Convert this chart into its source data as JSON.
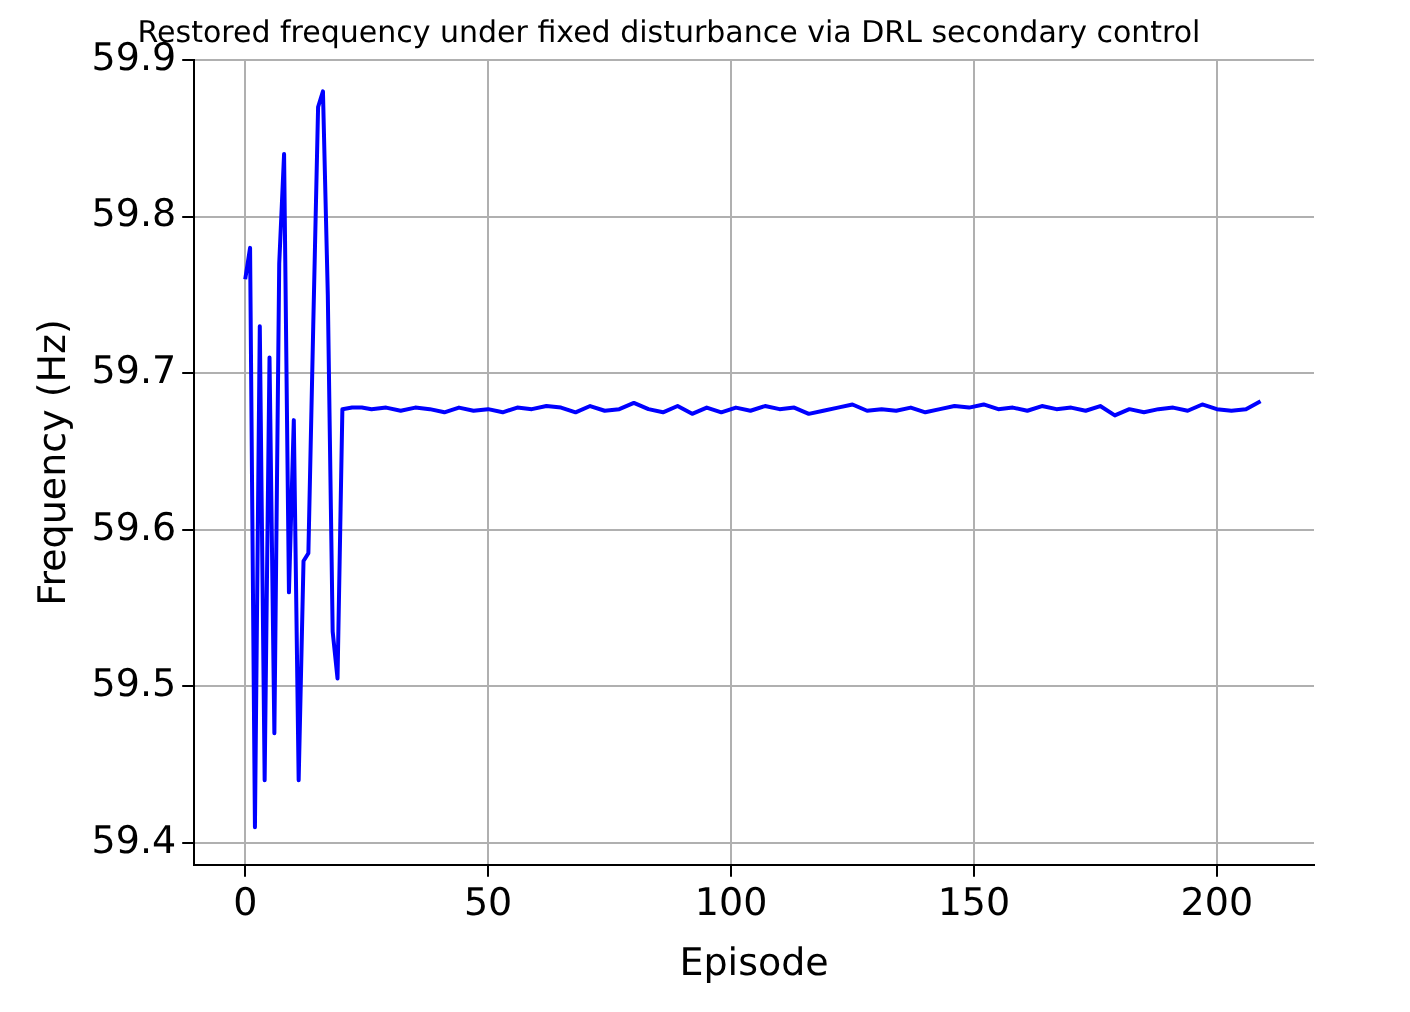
{
  "chart_data": {
    "type": "line",
    "title": "Restored frequency under fixed disturbance via DRL secondary control",
    "xlabel": "Episode",
    "ylabel": "Frequency (Hz)",
    "x": [
      0,
      1,
      2,
      3,
      4,
      5,
      6,
      7,
      8,
      9,
      10,
      11,
      12,
      13,
      14,
      15,
      16,
      17,
      18,
      19,
      20,
      22,
      24,
      26,
      29,
      32,
      35,
      38,
      41,
      44,
      47,
      50,
      53,
      56,
      59,
      62,
      65,
      68,
      71,
      74,
      77,
      80,
      83,
      86,
      89,
      92,
      95,
      98,
      101,
      104,
      107,
      110,
      113,
      116,
      119,
      122,
      125,
      128,
      131,
      134,
      137,
      140,
      143,
      146,
      149,
      152,
      155,
      158,
      161,
      164,
      167,
      170,
      173,
      176,
      179,
      182,
      185,
      188,
      191,
      194,
      197,
      200,
      203,
      206,
      209
    ],
    "series": [
      {
        "color": "#0000ff",
        "values": [
          59.76,
          59.78,
          59.41,
          59.73,
          59.44,
          59.71,
          59.47,
          59.77,
          59.84,
          59.56,
          59.67,
          59.44,
          59.58,
          59.585,
          59.73,
          59.87,
          59.88,
          59.75,
          59.535,
          59.505,
          59.677,
          59.678,
          59.678,
          59.677,
          59.678,
          59.676,
          59.678,
          59.677,
          59.675,
          59.678,
          59.676,
          59.677,
          59.675,
          59.678,
          59.677,
          59.679,
          59.678,
          59.675,
          59.679,
          59.676,
          59.677,
          59.681,
          59.677,
          59.675,
          59.679,
          59.674,
          59.678,
          59.675,
          59.678,
          59.676,
          59.679,
          59.677,
          59.678,
          59.674,
          59.676,
          59.678,
          59.68,
          59.676,
          59.677,
          59.676,
          59.678,
          59.675,
          59.677,
          59.679,
          59.678,
          59.68,
          59.677,
          59.678,
          59.676,
          59.679,
          59.677,
          59.678,
          59.676,
          59.679,
          59.673,
          59.677,
          59.675,
          59.677,
          59.678,
          59.676,
          59.68,
          59.677,
          59.676,
          59.677,
          59.682
        ]
      }
    ],
    "xlim": [
      -10.5,
      220
    ],
    "ylim": [
      59.386,
      59.9
    ],
    "xticks": [
      0,
      50,
      100,
      150,
      200
    ],
    "yticks": [
      59.4,
      59.5,
      59.6,
      59.7,
      59.8,
      59.9
    ],
    "grid": true,
    "legend": false,
    "marker": "none",
    "line_style": "solid"
  }
}
